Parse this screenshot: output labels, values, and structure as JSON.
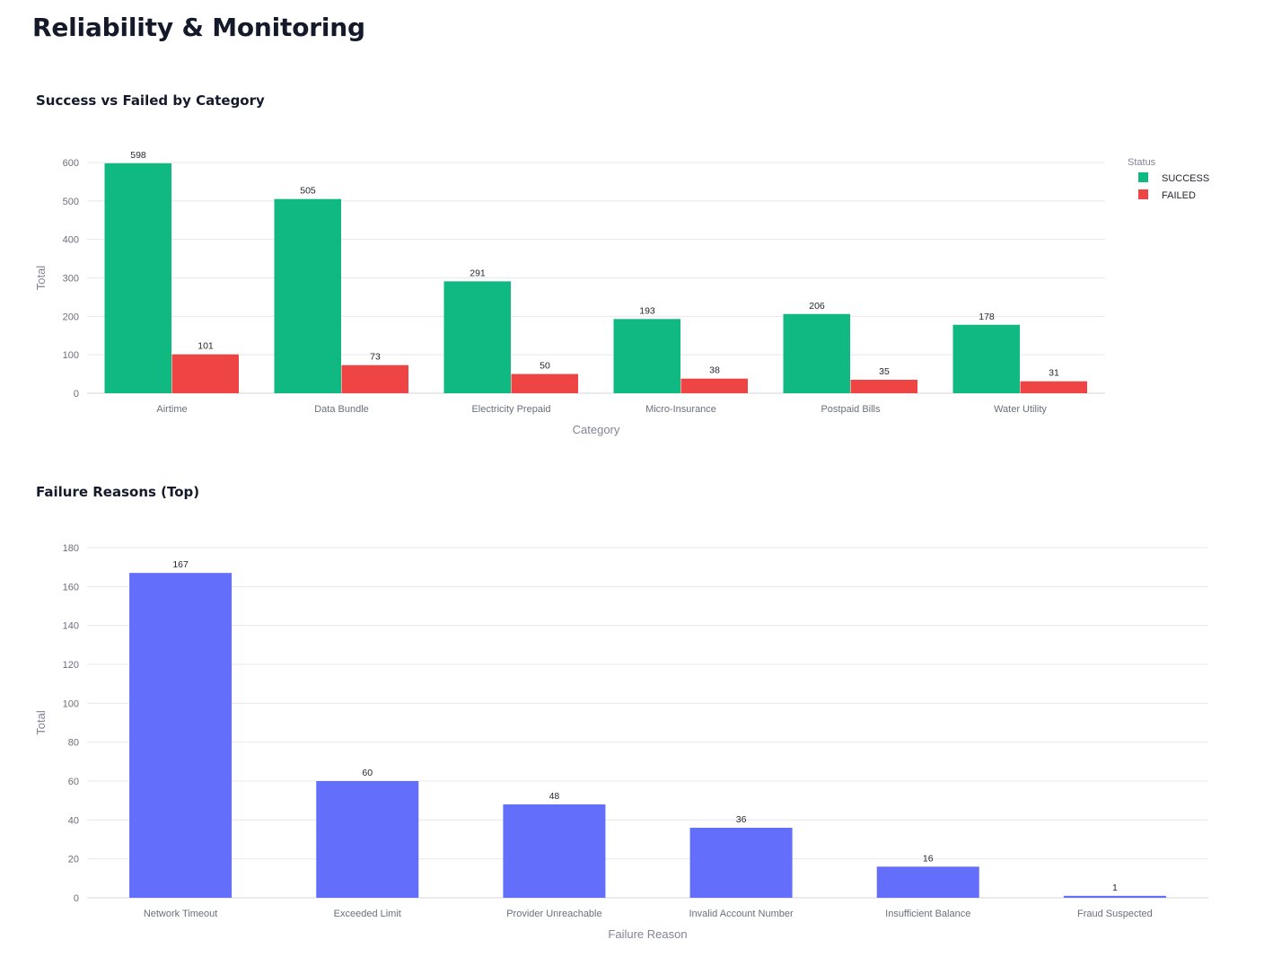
{
  "page": {
    "title": "Reliability & Monitoring"
  },
  "colors": {
    "success": "#10b981",
    "failed": "#ef4444",
    "reason": "#636efa",
    "grid": "#e8e8ec",
    "axis_text": "#6b6f7b"
  },
  "chart_data": [
    {
      "type": "bar",
      "title": "Success vs Failed by Category",
      "xlabel": "Category",
      "ylabel": "Total",
      "categories": [
        "Airtime",
        "Data Bundle",
        "Electricity Prepaid",
        "Micro-Insurance",
        "Postpaid Bills",
        "Water Utility"
      ],
      "series": [
        {
          "name": "SUCCESS",
          "values": [
            598,
            505,
            291,
            193,
            206,
            178
          ]
        },
        {
          "name": "FAILED",
          "values": [
            101,
            73,
            50,
            38,
            35,
            31
          ]
        }
      ],
      "ylim": [
        0,
        600
      ],
      "yticks": [
        0,
        100,
        200,
        300,
        400,
        500,
        600
      ],
      "legend": {
        "title": "Status",
        "placement": "top-right"
      },
      "grid": true
    },
    {
      "type": "bar",
      "title": "Failure Reasons (Top)",
      "xlabel": "Failure Reason",
      "ylabel": "Total",
      "categories": [
        "Network Timeout",
        "Exceeded Limit",
        "Provider Unreachable",
        "Invalid Account Number",
        "Insufficient Balance",
        "Fraud Suspected"
      ],
      "values": [
        167,
        60,
        48,
        36,
        16,
        1
      ],
      "ylim": [
        0,
        180
      ],
      "yticks": [
        0,
        20,
        40,
        60,
        80,
        100,
        120,
        140,
        160,
        180
      ],
      "grid": true
    }
  ]
}
